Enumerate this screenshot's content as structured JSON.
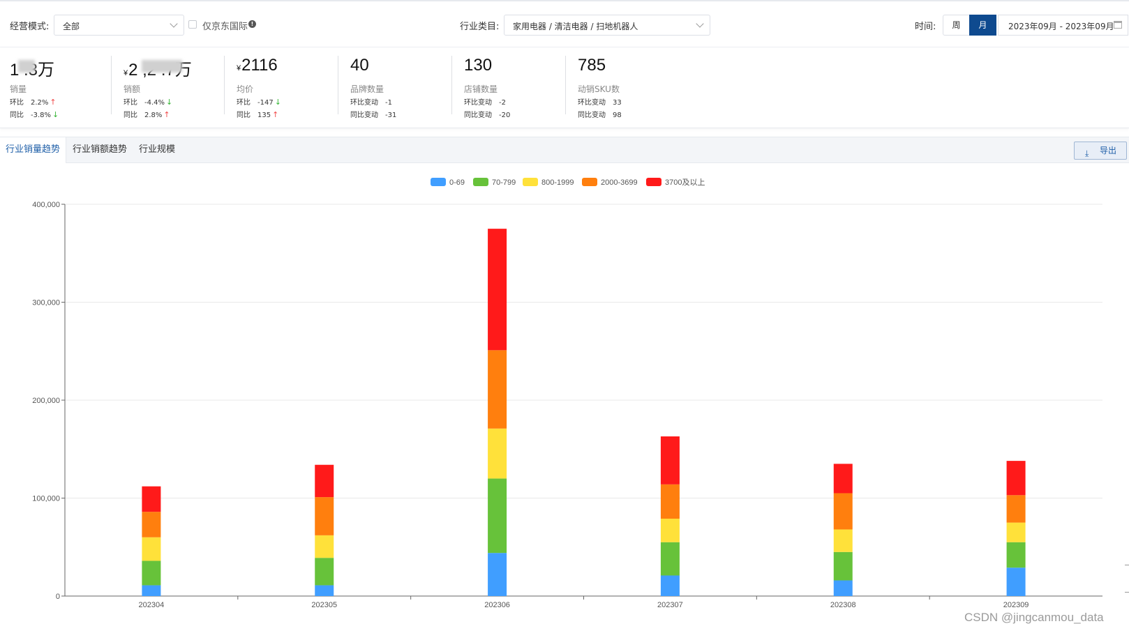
{
  "filters": {
    "mode_label": "经营模式:",
    "mode_value": "全部",
    "jd_only_label": "仅京东国际",
    "category_label": "行业类目:",
    "category_value": "家用电器 / 清洁电器 / 扫地机器人",
    "time_label": "时间:",
    "week_label": "周",
    "month_label": "月",
    "date_range": "2023年09月 - 2023年09月"
  },
  "kpis": [
    {
      "value": "1 .3万",
      "prefix": "",
      "name": "销量",
      "l1_label": "环比",
      "l1_value": "2.2%",
      "l1_dir": "↑",
      "l2_label": "同比",
      "l2_value": "-3.8%",
      "l2_dir": "↓"
    },
    {
      "value": "2 ,2 .7万",
      "prefix": "¥",
      "name": "销额",
      "l1_label": "环比",
      "l1_value": "-4.4%",
      "l1_dir": "↓",
      "l2_label": "同比",
      "l2_value": "2.8%",
      "l2_dir": "↑"
    },
    {
      "value": "2116",
      "prefix": "¥",
      "name": "均价",
      "l1_label": "环比",
      "l1_value": "-147",
      "l1_dir": "↓",
      "l2_label": "同比",
      "l2_value": "135",
      "l2_dir": "↑"
    },
    {
      "value": "40",
      "prefix": "",
      "name": "品牌数量",
      "l1_label": "环比变动",
      "l1_value": "-1",
      "l1_dir": "",
      "l2_label": "同比变动",
      "l2_value": "-31",
      "l2_dir": ""
    },
    {
      "value": "130",
      "prefix": "",
      "name": "店铺数量",
      "l1_label": "环比变动",
      "l1_value": "-2",
      "l1_dir": "",
      "l2_label": "同比变动",
      "l2_value": "-20",
      "l2_dir": ""
    },
    {
      "value": "785",
      "prefix": "",
      "name": "动销SKU数",
      "l1_label": "环比变动",
      "l1_value": "33",
      "l1_dir": "",
      "l2_label": "同比变动",
      "l2_value": "98",
      "l2_dir": ""
    }
  ],
  "tabs": [
    "行业销量趋势",
    "行业销额趋势",
    "行业规模"
  ],
  "export_label": "导出",
  "watermark": "CSDN @jingcanmou_data",
  "colors": {
    "accent": "#0e4a8f",
    "link": "#1f5fa8",
    "up": "#f04a4a",
    "down": "#35b535"
  },
  "chart_data": {
    "type": "bar",
    "stacked": true,
    "categories": [
      "202304",
      "202305",
      "202306",
      "202307",
      "202308",
      "202309"
    ],
    "series": [
      {
        "name": "0-69",
        "color": "#409eff",
        "values": [
          11000,
          11000,
          44000,
          21000,
          16000,
          29000
        ]
      },
      {
        "name": "70-799",
        "color": "#67c23a",
        "values": [
          25000,
          28000,
          76000,
          34000,
          29000,
          26000
        ]
      },
      {
        "name": "800-1999",
        "color": "#ffe13a",
        "values": [
          24000,
          23000,
          51000,
          24000,
          23000,
          20000
        ]
      },
      {
        "name": "2000-3699",
        "color": "#ff7f0e",
        "values": [
          26000,
          39000,
          80000,
          35000,
          37000,
          28000
        ]
      },
      {
        "name": "3700及以上",
        "color": "#ff1a1a",
        "values": [
          26000,
          33000,
          124000,
          49000,
          30000,
          35000
        ]
      }
    ],
    "ylim": [
      0,
      400000
    ],
    "yticks": [
      0,
      100000,
      200000,
      300000,
      400000
    ],
    "ytick_labels": [
      "0",
      "100,000",
      "200,000",
      "300,000",
      "400,000"
    ],
    "grid": true,
    "legend_position": "top-center"
  }
}
